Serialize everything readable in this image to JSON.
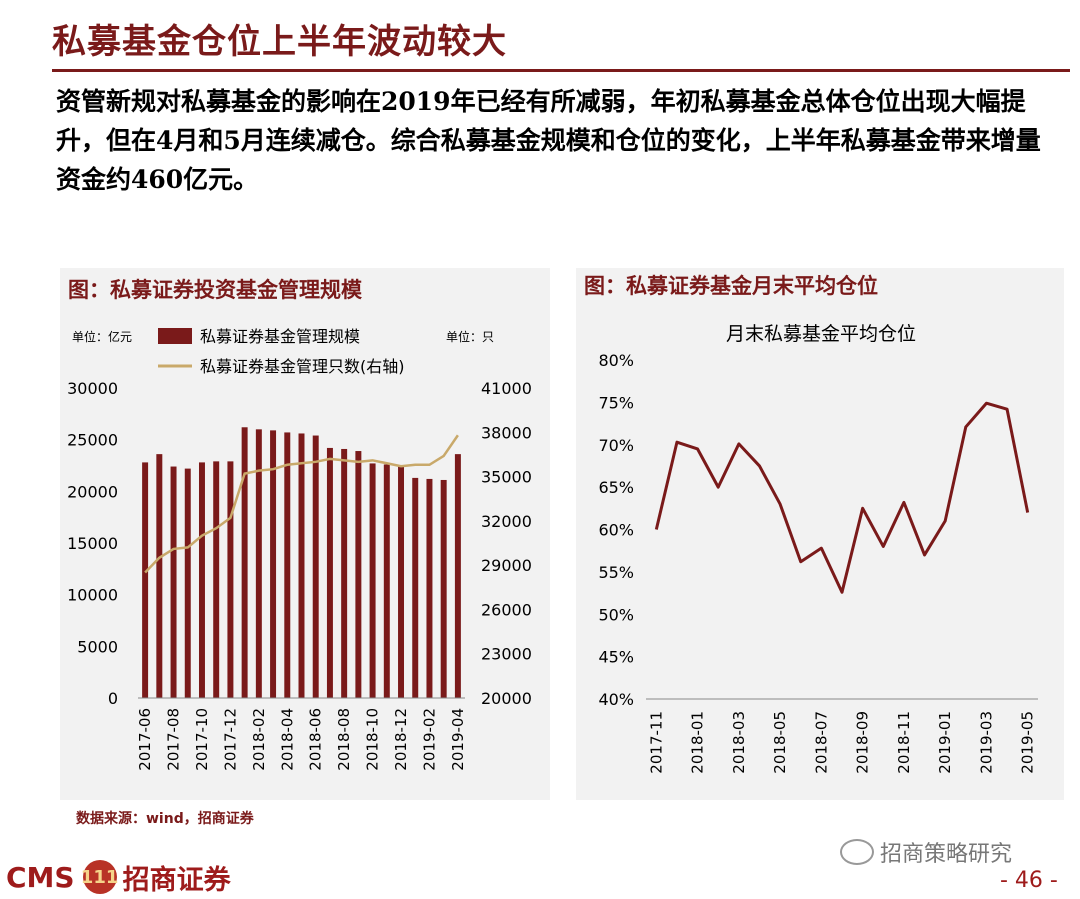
{
  "slide": {
    "title": "私募基金仓位上半年波动较大",
    "body": "资管新规对私募基金的影响在2019年已经有所减弱，年初私募基金总体仓位出现大幅提升，但在4月和5月连续减仓。综合私募基金规模和仓位的变化，上半年私募基金带来增量资金约460亿元。",
    "source": "数据来源：wind，招商证券",
    "logo_latin": "CMS",
    "logo_badge": "111",
    "logo_cn": "招商证券",
    "wechat": "招商策略研究",
    "page_number": "- 46 -"
  },
  "chart_data": [
    {
      "type": "bar",
      "panel_title": "图：私募证券投资基金管理规模",
      "left_unit": "单位：亿元",
      "right_unit": "单位：只",
      "x": [
        "2017-06",
        "2017-07",
        "2017-08",
        "2017-09",
        "2017-10",
        "2017-11",
        "2017-12",
        "2018-01",
        "2018-02",
        "2018-03",
        "2018-04",
        "2018-05",
        "2018-06",
        "2018-07",
        "2018-08",
        "2018-09",
        "2018-10",
        "2018-11",
        "2018-12",
        "2019-01",
        "2019-02",
        "2019-03",
        "2019-04"
      ],
      "tick_labels": [
        "2017-06",
        "2017-08",
        "2017-10",
        "2017-12",
        "2018-02",
        "2018-04",
        "2018-06",
        "2018-08",
        "2018-10",
        "2018-12",
        "2019-02",
        "2019-04"
      ],
      "series": [
        {
          "name": "私募证券基金管理规模",
          "axis": "left",
          "kind": "bar",
          "color": "#7a1a1a",
          "values": [
            22800,
            23600,
            22400,
            22200,
            22800,
            22900,
            22900,
            26200,
            26000,
            25900,
            25700,
            25600,
            25400,
            24200,
            24100,
            23900,
            22700,
            22600,
            22500,
            21300,
            21200,
            21100,
            23600
          ]
        },
        {
          "name": "私募证券基金管理只数(右轴)",
          "axis": "right",
          "kind": "line",
          "color": "#c9a96a",
          "values": [
            28500,
            29500,
            30100,
            30200,
            31000,
            31500,
            32200,
            35200,
            35400,
            35500,
            35800,
            35900,
            36000,
            36200,
            36100,
            36000,
            36100,
            35900,
            35700,
            35800,
            35800,
            36400,
            37800
          ]
        }
      ],
      "ylim_left": [
        0,
        30000
      ],
      "yticks_left": [
        0,
        5000,
        10000,
        15000,
        20000,
        25000,
        30000
      ],
      "ylim_right": [
        20000,
        41000
      ],
      "yticks_right": [
        20000,
        23000,
        26000,
        29000,
        32000,
        35000,
        38000,
        41000
      ]
    },
    {
      "type": "line",
      "panel_title": "图：私募证券基金月末平均仓位",
      "title": "月末私募基金平均仓位",
      "x": [
        "2017-11",
        "2017-12",
        "2018-01",
        "2018-02",
        "2018-03",
        "2018-04",
        "2018-05",
        "2018-06",
        "2018-07",
        "2018-08",
        "2018-09",
        "2018-10",
        "2018-11",
        "2018-12",
        "2019-01",
        "2019-02",
        "2019-03",
        "2019-04",
        "2019-05"
      ],
      "tick_labels": [
        "2017-11",
        "2018-01",
        "2018-03",
        "2018-05",
        "2018-07",
        "2018-09",
        "2018-11",
        "2019-01",
        "2019-03",
        "2019-05"
      ],
      "series": [
        {
          "name": "月末私募基金平均仓位",
          "color": "#7a1a1a",
          "values": [
            60.0,
            70.3,
            69.5,
            65.0,
            70.1,
            67.5,
            63.0,
            56.2,
            57.8,
            52.6,
            62.5,
            58.0,
            63.2,
            57.0,
            61.0,
            72.1,
            74.9,
            74.2,
            62.0
          ]
        }
      ],
      "ylim": [
        40,
        80
      ],
      "yticks": [
        "40%",
        "45%",
        "50%",
        "55%",
        "60%",
        "65%",
        "70%",
        "75%",
        "80%"
      ]
    }
  ]
}
